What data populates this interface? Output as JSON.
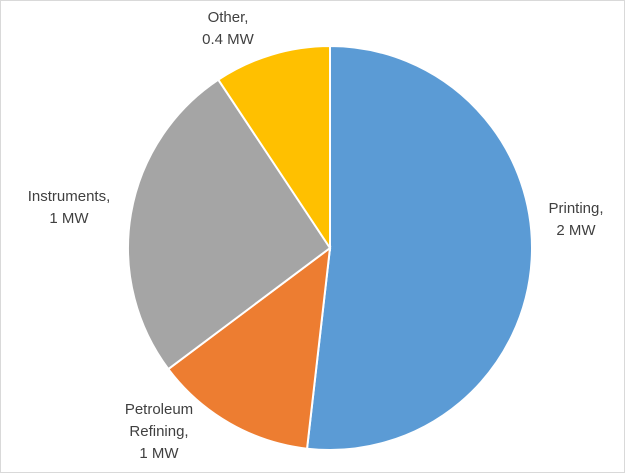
{
  "chart_data": {
    "type": "pie",
    "title": "",
    "start_angle_deg": 0,
    "direction": "clockwise",
    "slices": [
      {
        "label_lines": [
          "Printing,",
          "2 MW"
        ],
        "value": 2,
        "color": "#5b9bd5"
      },
      {
        "label_lines": [
          "Petroleum",
          "Refining,",
          "1 MW"
        ],
        "value": 0.5,
        "color": "#ed7d31"
      },
      {
        "label_lines": [
          "Instruments,",
          "1 MW"
        ],
        "value": 1,
        "color": "#a5a5a5"
      },
      {
        "label_lines": [
          "Other,",
          "0.4 MW"
        ],
        "value": 0.36,
        "color": "#ffc000"
      }
    ]
  }
}
